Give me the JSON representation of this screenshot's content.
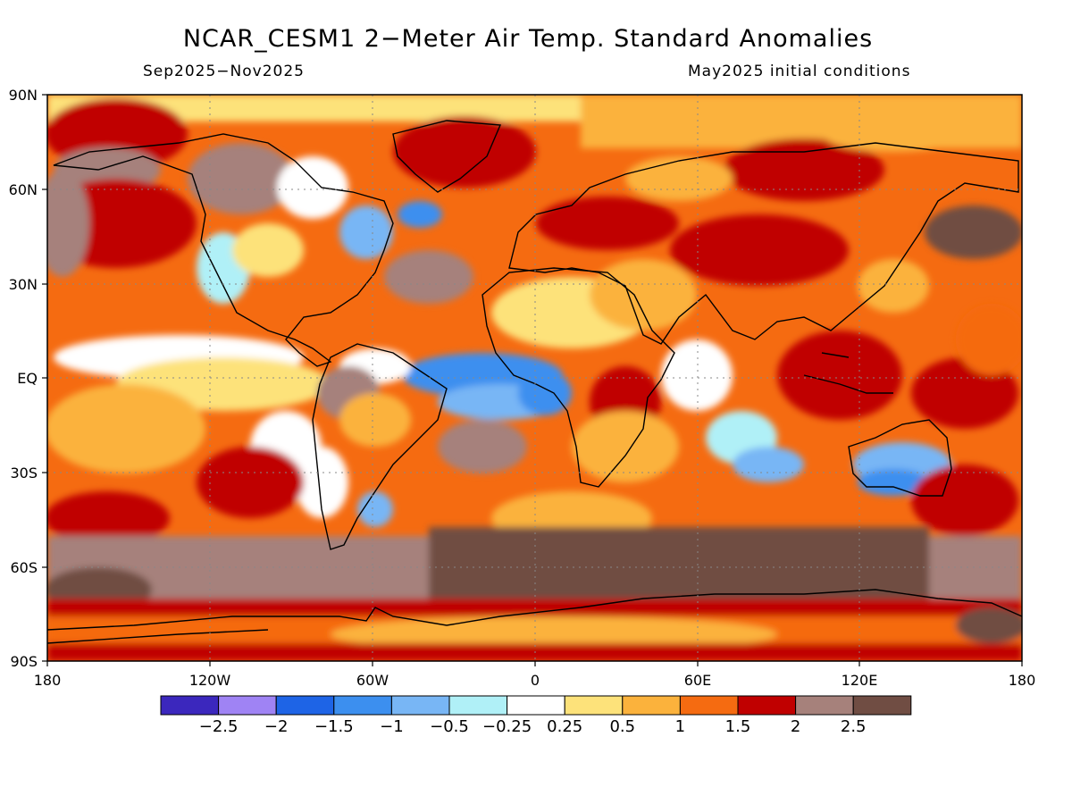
{
  "title": "NCAR_CESM1 2−Meter Air Temp. Standard Anomalies",
  "period": "Sep2025−Nov2025",
  "init": "May2025 initial conditions",
  "lat_labels": [
    "90N",
    "60N",
    "30N",
    "EQ",
    "30S",
    "60S",
    "90S"
  ],
  "lon_labels": [
    "180",
    "120W",
    "60W",
    "0",
    "60E",
    "120E",
    "180"
  ],
  "colorbar": {
    "colors": [
      "#3b27bd",
      "#9f83f4",
      "#1e64e6",
      "#3c8fef",
      "#78b6f5",
      "#b0f0f7",
      "#ffffff",
      "#fde27a",
      "#fbb23c",
      "#f56b11",
      "#c00000",
      "#a6817b",
      "#704d43"
    ],
    "labels": [
      "−2.5",
      "−2",
      "−1.5",
      "−1",
      "−0.5",
      "−0.25",
      "0.25",
      "0.5",
      "1",
      "1.5",
      "2",
      "2.5"
    ]
  }
}
